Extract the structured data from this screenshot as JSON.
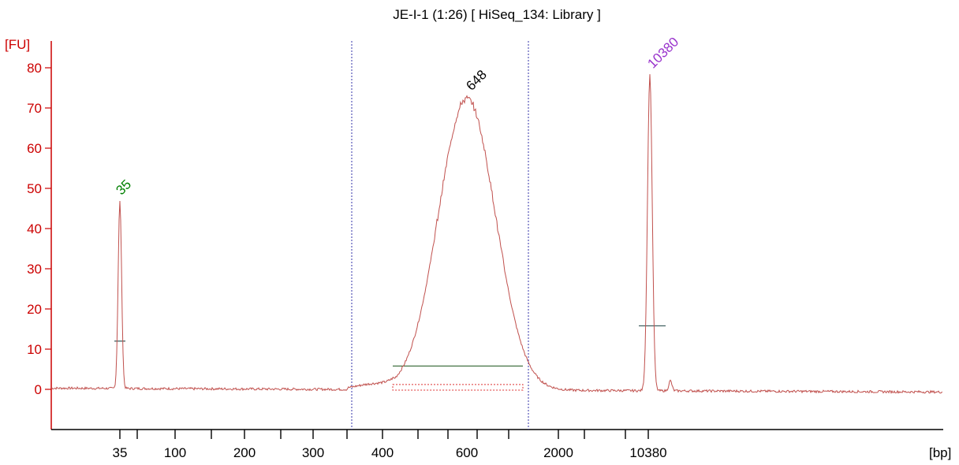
{
  "chart_data": {
    "type": "line",
    "title": "JE-I-1 (1:26)  [ HiSeq_134:  Library ]",
    "y_unit_label": "[FU]",
    "x_unit_label": "[bp]",
    "ylim": [
      -10,
      85
    ],
    "y_ticks": [
      0,
      10,
      20,
      30,
      40,
      50,
      60,
      70,
      80
    ],
    "x_tick_labels": [
      "35",
      "100",
      "200",
      "300",
      "400",
      "600",
      "2000",
      "10380"
    ],
    "grid": false,
    "peaks": [
      {
        "label": "35",
        "color": "#008000",
        "height": 47
      },
      {
        "label": "648",
        "color": "#000000",
        "height": 73
      },
      {
        "label": "10380",
        "color": "#9933cc",
        "height": 78.5
      }
    ],
    "colors": {
      "trace": "#c0504d",
      "axis": "#cc0000",
      "region_marker": "#3333aa",
      "baseline_bar": "#336633",
      "region_fill_outline": "#dd3333"
    }
  }
}
